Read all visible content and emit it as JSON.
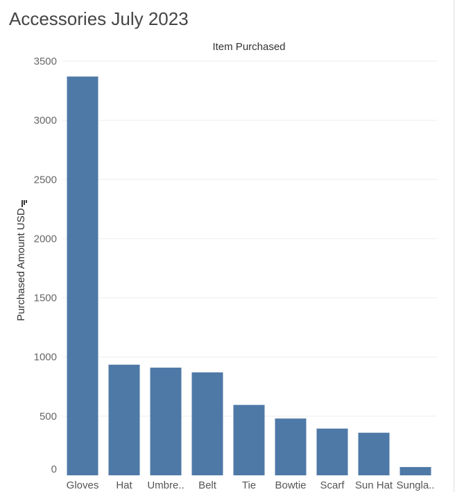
{
  "page": {
    "title": "Accessories July 2023"
  },
  "chart_data": {
    "type": "bar",
    "column_header": "Item Purchased",
    "ylabel": "Purchased Amount USD",
    "categories": [
      "Gloves",
      "Hat",
      "Umbre..",
      "Belt",
      "Tie",
      "Bowtie",
      "Scarf",
      "Sun Hat",
      "Sungla.."
    ],
    "values": [
      3370,
      935,
      910,
      870,
      595,
      480,
      395,
      360,
      70
    ],
    "ylim": [
      0,
      3500
    ],
    "yticks": [
      0,
      500,
      1000,
      1500,
      2000,
      2500,
      3000,
      3500
    ],
    "grid": true,
    "bar_color": "#4e79a7",
    "grid_color": "#eeeeee",
    "filter_icon": "filter-icon"
  }
}
